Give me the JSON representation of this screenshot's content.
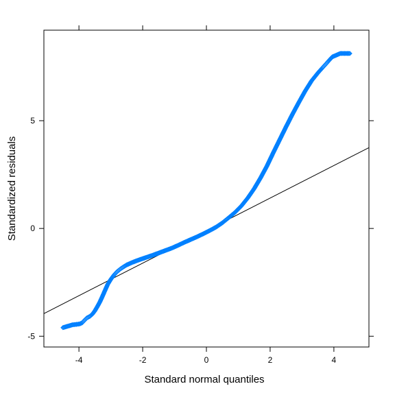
{
  "chart_data": {
    "type": "scatter",
    "title": "",
    "xlabel": "Standard normal quantiles",
    "ylabel": "Standardized residuals",
    "xlim": [
      -5.1,
      5.1
    ],
    "ylim": [
      -5.5,
      9.2
    ],
    "x_ticks": [
      {
        "value": -4,
        "label": "-4"
      },
      {
        "value": -2,
        "label": "-2"
      },
      {
        "value": 0,
        "label": "0"
      },
      {
        "value": 2,
        "label": "2"
      },
      {
        "value": 4,
        "label": "4"
      }
    ],
    "y_ticks": [
      {
        "value": -5,
        "label": "-5"
      },
      {
        "value": 0,
        "label": "0"
      },
      {
        "value": 5,
        "label": "5"
      }
    ],
    "grid": false,
    "legend": "none",
    "reference_line": {
      "x": [
        -5.1,
        5.1
      ],
      "y": [
        -3.95,
        3.75
      ],
      "color": "#000000"
    },
    "series": [
      {
        "marker": "diamond-open",
        "color": "#0080ff",
        "points": [
          [
            -4.5,
            -4.6
          ],
          [
            -4.2,
            -4.47
          ],
          [
            -4.08,
            -4.45
          ],
          [
            -3.98,
            -4.43
          ],
          [
            -3.9,
            -4.38
          ],
          [
            -3.82,
            -4.25
          ],
          [
            -3.75,
            -4.15
          ],
          [
            -3.66,
            -4.08
          ],
          [
            -3.58,
            -3.98
          ],
          [
            -3.5,
            -3.82
          ],
          [
            -3.42,
            -3.62
          ],
          [
            -3.34,
            -3.4
          ],
          [
            -3.26,
            -3.14
          ],
          [
            -3.18,
            -2.87
          ],
          [
            -3.1,
            -2.6
          ],
          [
            -3.0,
            -2.36
          ],
          [
            -2.9,
            -2.16
          ],
          [
            -2.8,
            -2.0
          ],
          [
            -2.7,
            -1.88
          ],
          [
            -2.6,
            -1.78
          ],
          [
            -2.5,
            -1.69
          ],
          [
            -2.3,
            -1.56
          ],
          [
            -2.1,
            -1.45
          ],
          [
            -1.9,
            -1.35
          ],
          [
            -1.7,
            -1.25
          ],
          [
            -1.5,
            -1.14
          ],
          [
            -1.3,
            -1.03
          ],
          [
            -1.1,
            -0.92
          ],
          [
            -0.9,
            -0.79
          ],
          [
            -0.7,
            -0.65
          ],
          [
            -0.5,
            -0.52
          ],
          [
            -0.3,
            -0.39
          ],
          [
            -0.1,
            -0.25
          ],
          [
            0.1,
            -0.1
          ],
          [
            0.3,
            0.06
          ],
          [
            0.5,
            0.26
          ],
          [
            0.7,
            0.5
          ],
          [
            0.9,
            0.75
          ],
          [
            1.1,
            1.05
          ],
          [
            1.3,
            1.42
          ],
          [
            1.5,
            1.85
          ],
          [
            1.7,
            2.35
          ],
          [
            1.9,
            2.9
          ],
          [
            2.1,
            3.52
          ],
          [
            2.3,
            4.12
          ],
          [
            2.5,
            4.72
          ],
          [
            2.7,
            5.3
          ],
          [
            2.9,
            5.85
          ],
          [
            3.1,
            6.38
          ],
          [
            3.3,
            6.85
          ],
          [
            3.5,
            7.22
          ],
          [
            3.62,
            7.42
          ],
          [
            3.72,
            7.58
          ],
          [
            3.82,
            7.75
          ],
          [
            3.95,
            7.96
          ],
          [
            4.2,
            8.12
          ],
          [
            4.5,
            8.12
          ]
        ]
      }
    ]
  }
}
